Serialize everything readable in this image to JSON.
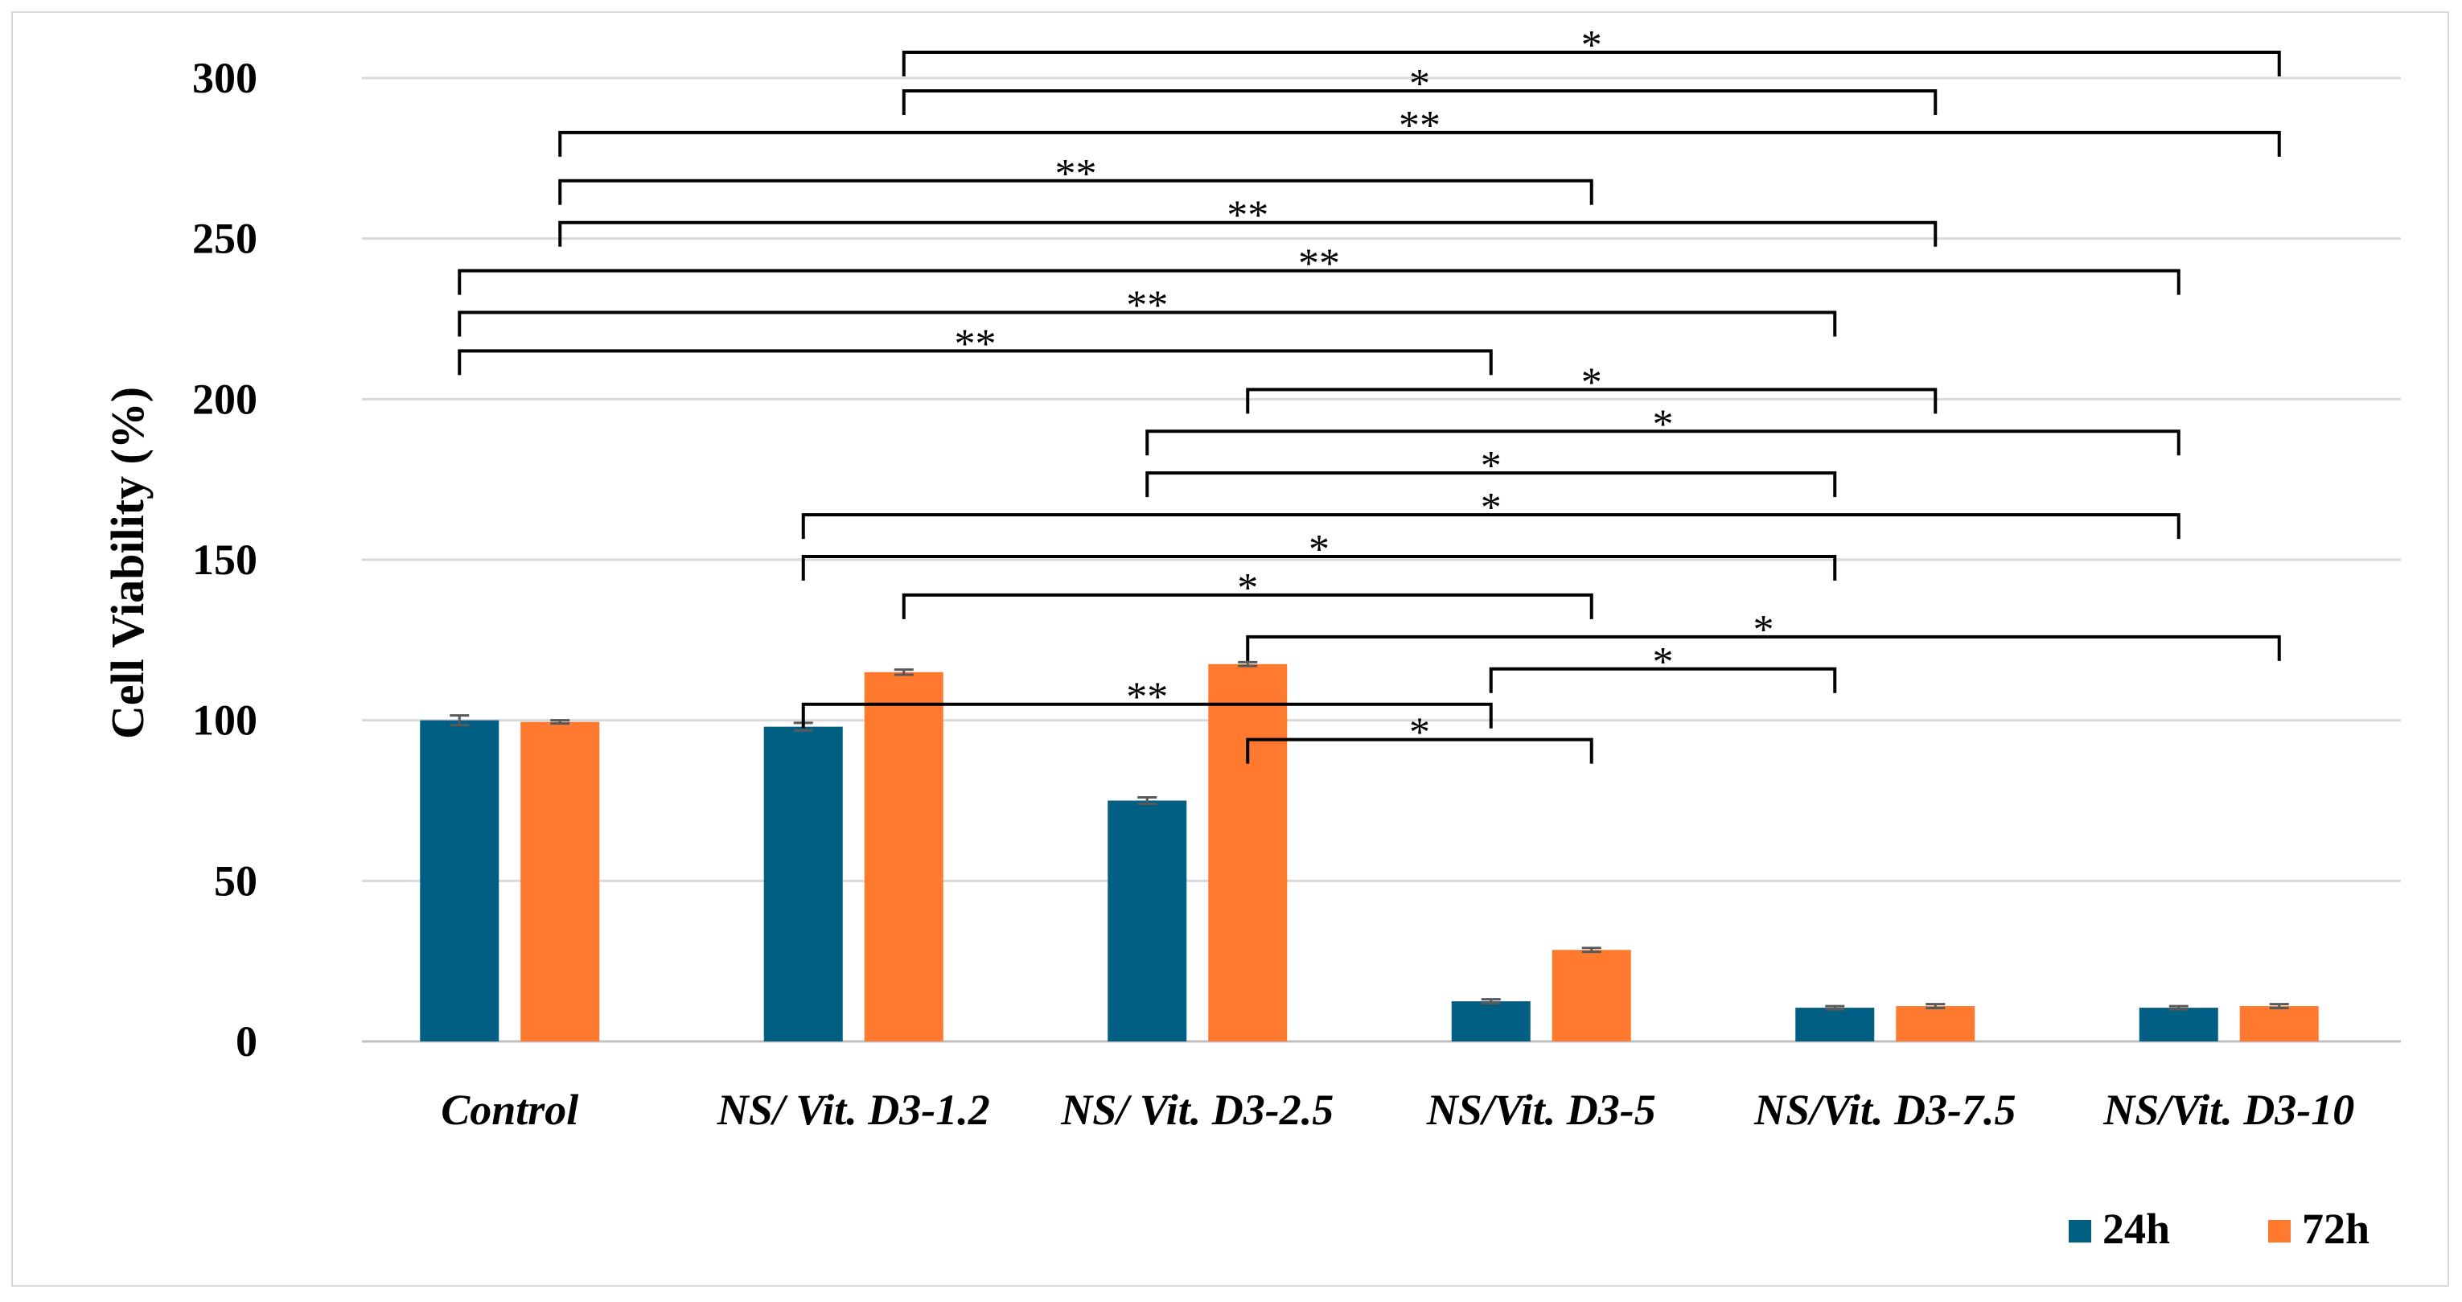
{
  "chart_data": {
    "type": "bar",
    "title": "",
    "xlabel": "",
    "ylabel": "Cell Viability (%)",
    "ylim": [
      0,
      300
    ],
    "yticks": [
      0,
      50,
      100,
      150,
      200,
      250,
      300
    ],
    "grid": true,
    "legend_position": "bottom-right",
    "categories": [
      "Control",
      "NS/ Vit. D3-1.2",
      "NS/ Vit. D3-2.5",
      "NS/Vit. D3-5",
      "NS/Vit. D3-7.5",
      "NS/Vit. D3-10"
    ],
    "series": [
      {
        "name": "24h",
        "color": "#005f83",
        "values": [
          100,
          98,
          75,
          12.5,
          10.5,
          10.5
        ],
        "errors": [
          1.5,
          1.2,
          1,
          0.6,
          0.5,
          0.5
        ]
      },
      {
        "name": "72h",
        "color": "#ff7a2f",
        "values": [
          99.5,
          115,
          117.5,
          28.5,
          11,
          11
        ],
        "errors": [
          0.5,
          0.8,
          0.6,
          0.6,
          0.6,
          0.6
        ]
      }
    ],
    "significance": [
      {
        "from_cat": 1,
        "from_series": 1,
        "to_cat": 5,
        "to_series": 1,
        "y": 308,
        "label": "*"
      },
      {
        "from_cat": 1,
        "from_series": 1,
        "to_cat": 4,
        "to_series": 1,
        "y": 296,
        "label": "*"
      },
      {
        "from_cat": 0,
        "from_series": 1,
        "to_cat": 5,
        "to_series": 1,
        "y": 283,
        "label": "**"
      },
      {
        "from_cat": 0,
        "from_series": 1,
        "to_cat": 3,
        "to_series": 1,
        "y": 268,
        "label": "**"
      },
      {
        "from_cat": 0,
        "from_series": 1,
        "to_cat": 4,
        "to_series": 1,
        "y": 255,
        "label": "**"
      },
      {
        "from_cat": 0,
        "from_series": 0,
        "to_cat": 5,
        "to_series": 0,
        "y": 240,
        "label": "**"
      },
      {
        "from_cat": 0,
        "from_series": 0,
        "to_cat": 4,
        "to_series": 0,
        "y": 227,
        "label": "**"
      },
      {
        "from_cat": 0,
        "from_series": 0,
        "to_cat": 3,
        "to_series": 0,
        "y": 215,
        "label": "**"
      },
      {
        "from_cat": 2,
        "from_series": 1,
        "to_cat": 4,
        "to_series": 1,
        "y": 203,
        "label": "*"
      },
      {
        "from_cat": 2,
        "from_series": 0,
        "to_cat": 5,
        "to_series": 0,
        "y": 190,
        "label": "*"
      },
      {
        "from_cat": 2,
        "from_series": 0,
        "to_cat": 4,
        "to_series": 0,
        "y": 177,
        "label": "*"
      },
      {
        "from_cat": 1,
        "from_series": 0,
        "to_cat": 5,
        "to_series": 0,
        "y": 164,
        "label": "*"
      },
      {
        "from_cat": 1,
        "from_series": 0,
        "to_cat": 4,
        "to_series": 0,
        "y": 151,
        "label": "*"
      },
      {
        "from_cat": 1,
        "from_series": 1,
        "to_cat": 3,
        "to_series": 1,
        "y": 139,
        "label": "*"
      },
      {
        "from_cat": 2,
        "from_series": 1,
        "to_cat": 5,
        "to_series": 1,
        "y": 126,
        "label": "*"
      },
      {
        "from_cat": 3,
        "from_series": 0,
        "to_cat": 4,
        "to_series": 0,
        "y": 116,
        "label": "*"
      },
      {
        "from_cat": 1,
        "from_series": 0,
        "to_cat": 3,
        "to_series": 0,
        "y": 105,
        "label": "**"
      },
      {
        "from_cat": 2,
        "from_series": 1,
        "to_cat": 3,
        "to_series": 1,
        "y": 94,
        "label": "*"
      }
    ]
  }
}
